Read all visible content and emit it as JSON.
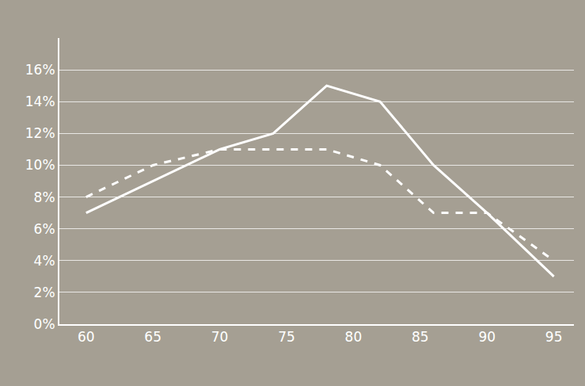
{
  "chart_data": {
    "type": "line",
    "x": [
      60,
      65,
      70,
      74,
      78,
      82,
      86,
      90,
      95
    ],
    "series": [
      {
        "color": "#ffffff",
        "line_style": "solid",
        "values": [
          7,
          9,
          11,
          12,
          15,
          14,
          10,
          7,
          3
        ]
      },
      {
        "color": "#ffffff",
        "line_style": "dashed",
        "values": [
          8,
          10,
          11,
          11,
          11,
          10,
          7,
          7,
          4
        ]
      }
    ],
    "xlim": [
      58,
      96.5
    ],
    "xticks": [
      60,
      65,
      70,
      75,
      80,
      85,
      90,
      95
    ],
    "ylim": [
      0,
      18
    ],
    "yticks": [
      {
        "value": 0,
        "label": "0%"
      },
      {
        "value": 2,
        "label": "2%"
      },
      {
        "value": 4,
        "label": "4%"
      },
      {
        "value": 6,
        "label": "6%"
      },
      {
        "value": 8,
        "label": "8%"
      },
      {
        "value": 10,
        "label": "10%"
      },
      {
        "value": 12,
        "label": "12%"
      },
      {
        "value": 14,
        "label": "14%"
      },
      {
        "value": 16,
        "label": "16%"
      }
    ],
    "grid": true
  }
}
